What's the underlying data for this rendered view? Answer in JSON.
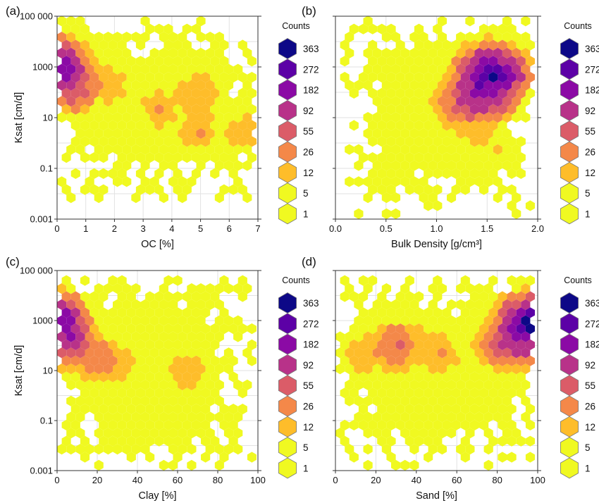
{
  "figure": {
    "legend_title": "Counts",
    "legend_levels": [
      "363",
      "272",
      "182",
      "92",
      "55",
      "26",
      "12",
      "5",
      "1"
    ],
    "colors": [
      "#0d0887",
      "#5c01a6",
      "#8b0aa5",
      "#b83289",
      "#db5c68",
      "#f48849",
      "#febd2a",
      "#f0f921",
      "#f0f921"
    ]
  },
  "chart_data": [
    {
      "type": "heatmap",
      "panel_label": "(a)",
      "xlabel": "OC [%]",
      "ylabel": "Ksat [cm/d]",
      "xscale": "linear",
      "yscale": "log",
      "xlim": [
        0,
        7
      ],
      "ylim": [
        0.001,
        100000
      ],
      "xticks": [
        "0",
        "1",
        "2",
        "3",
        "4",
        "5",
        "6",
        "7"
      ],
      "yticks": [
        "0.001",
        "0.1",
        "10",
        "1000",
        "100 000"
      ],
      "grid": true,
      "legend_placement": "right",
      "density_peak": {
        "x": 0.1,
        "y": 1000,
        "count": 272
      },
      "hotspots": [
        {
          "x": 0.1,
          "y": 1000,
          "count": 272
        },
        {
          "x": 0.3,
          "y": 500,
          "count": 182
        },
        {
          "x": 0.6,
          "y": 150,
          "count": 92
        },
        {
          "x": 1.0,
          "y": 300,
          "count": 55
        },
        {
          "x": 1.8,
          "y": 200,
          "count": 26
        },
        {
          "x": 2.5,
          "y": 100,
          "count": 12
        },
        {
          "x": 4.7,
          "y": 80,
          "count": 26
        },
        {
          "x": 5.0,
          "y": 80,
          "count": 26
        },
        {
          "x": 6.5,
          "y": 2.5,
          "count": 26
        },
        {
          "x": 3.6,
          "y": 20,
          "count": 26
        },
        {
          "x": 4.9,
          "y": 4,
          "count": 26
        }
      ],
      "value_extent": {
        "x": [
          0,
          7
        ],
        "y": [
          0.01,
          60000
        ]
      }
    },
    {
      "type": "heatmap",
      "panel_label": "(b)",
      "xlabel": "Bulk Density [g/cm³]",
      "ylabel": "",
      "xscale": "linear",
      "yscale": "log",
      "xlim": [
        0,
        2.0
      ],
      "ylim": [
        0.001,
        100000
      ],
      "xticks": [
        "0.0",
        "0.5",
        "1.0",
        "1.5",
        "2.0"
      ],
      "yticks": [],
      "grid": true,
      "legend_placement": "right",
      "density_peak": {
        "x": 1.55,
        "y": 500,
        "count": 363
      },
      "hotspots": [
        {
          "x": 1.55,
          "y": 500,
          "count": 363
        },
        {
          "x": 1.5,
          "y": 200,
          "count": 272
        },
        {
          "x": 1.45,
          "y": 80,
          "count": 182
        },
        {
          "x": 1.3,
          "y": 40,
          "count": 92
        },
        {
          "x": 1.4,
          "y": 5,
          "count": 26
        },
        {
          "x": 1.6,
          "y": 0.5,
          "count": 12
        }
      ],
      "value_extent": {
        "x": [
          0.1,
          1.95
        ],
        "y": [
          0.002,
          60000
        ]
      }
    },
    {
      "type": "heatmap",
      "panel_label": "(c)",
      "xlabel": "Clay [%]",
      "ylabel": "Ksat [cm/d]",
      "xscale": "linear",
      "yscale": "log",
      "xlim": [
        0,
        100
      ],
      "ylim": [
        0.001,
        100000
      ],
      "xticks": [
        "0",
        "20",
        "40",
        "60",
        "80",
        "100"
      ],
      "yticks": [
        "0.001",
        "0.1",
        "10",
        "1000",
        "100 000"
      ],
      "grid": true,
      "legend_placement": "right",
      "density_peak": {
        "x": 2,
        "y": 800,
        "count": 272
      },
      "hotspots": [
        {
          "x": 2,
          "y": 800,
          "count": 272
        },
        {
          "x": 5,
          "y": 300,
          "count": 182
        },
        {
          "x": 10,
          "y": 100,
          "count": 92
        },
        {
          "x": 20,
          "y": 30,
          "count": 55
        },
        {
          "x": 30,
          "y": 20,
          "count": 26
        },
        {
          "x": 50,
          "y": 10,
          "count": 12
        },
        {
          "x": 65,
          "y": 8,
          "count": 26
        }
      ],
      "value_extent": {
        "x": [
          0,
          95
        ],
        "y": [
          0.001,
          80000
        ]
      }
    },
    {
      "type": "heatmap",
      "panel_label": "(d)",
      "xlabel": "Sand [%]",
      "ylabel": "",
      "xscale": "linear",
      "yscale": "log",
      "xlim": [
        0,
        100
      ],
      "ylim": [
        0.001,
        100000
      ],
      "xticks": [
        "0",
        "20",
        "40",
        "60",
        "80",
        "100"
      ],
      "yticks": [],
      "grid": true,
      "legend_placement": "right",
      "density_peak": {
        "x": 97,
        "y": 800,
        "count": 363
      },
      "hotspots": [
        {
          "x": 97,
          "y": 800,
          "count": 363
        },
        {
          "x": 94,
          "y": 400,
          "count": 272
        },
        {
          "x": 90,
          "y": 200,
          "count": 182
        },
        {
          "x": 85,
          "y": 100,
          "count": 92
        },
        {
          "x": 30,
          "y": 100,
          "count": 55
        },
        {
          "x": 50,
          "y": 50,
          "count": 26
        },
        {
          "x": 15,
          "y": 50,
          "count": 26
        },
        {
          "x": 60,
          "y": 20,
          "count": 12
        }
      ],
      "value_extent": {
        "x": [
          0,
          100
        ],
        "y": [
          0.002,
          80000
        ]
      }
    }
  ]
}
